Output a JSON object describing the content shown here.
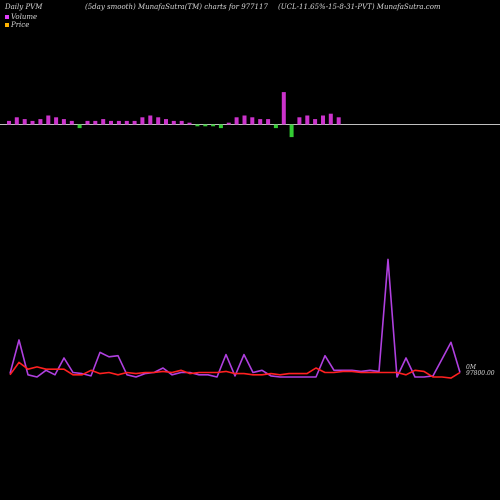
{
  "header": {
    "left": "Daily PVM",
    "mid": "(5day smooth) MunafaSutra(TM) charts for 977117",
    "right": "(UCL-11.65%-15-8-31-PVT) MunafaSutra.com"
  },
  "legend": [
    {
      "label": "Volume",
      "color": "#e040fb"
    },
    {
      "label": "Price",
      "color": "#ffb300"
    }
  ],
  "colors": {
    "volume": "#cc33cc",
    "price": "#ff2020",
    "down_bar": "#33cc33",
    "axis": "#ffffff"
  },
  "labels": {
    "volume_value": "0M",
    "price_value": "97800.00"
  },
  "chart_data": {
    "type": "bar",
    "series": [
      {
        "name": "Volume",
        "kind": "bar",
        "values": [
          1,
          2,
          1.5,
          1,
          1.5,
          2.5,
          2,
          1.5,
          1,
          1,
          1,
          1,
          1.5,
          1,
          1,
          1,
          1,
          2,
          2.5,
          2,
          1.5,
          1,
          1,
          0.5,
          0.5,
          0.5,
          0.5,
          1,
          0.5,
          2,
          2.5,
          2,
          1.5,
          1.5,
          1,
          9,
          3.5,
          2,
          2.5,
          1.5,
          2.5,
          3,
          2
        ]
      },
      {
        "name": "Volume line",
        "kind": "line",
        "values": [
          3,
          33,
          2,
          0,
          6,
          2,
          17,
          4,
          3,
          1,
          22,
          18,
          19,
          2,
          0,
          3,
          4,
          8,
          2,
          4,
          4,
          2,
          2,
          0,
          20,
          1,
          20,
          4,
          6,
          1,
          0,
          0,
          0,
          0,
          0,
          19,
          6,
          6,
          6,
          5,
          6,
          5,
          105,
          0,
          17,
          0,
          0,
          1,
          16,
          31,
          4
        ]
      },
      {
        "name": "Price line",
        "kind": "line",
        "values": [
          2,
          13,
          7,
          9,
          7,
          7,
          7,
          2,
          2,
          6,
          3,
          4,
          2,
          4,
          3,
          4,
          4,
          5,
          4,
          6,
          3,
          4,
          4,
          4,
          5,
          3,
          3,
          2,
          2,
          3,
          2,
          3,
          3,
          3,
          8,
          4,
          4,
          5,
          5,
          4,
          4,
          4,
          4,
          4,
          2,
          6,
          5,
          0,
          0,
          -1,
          4
        ]
      }
    ],
    "down_bars": [
      9,
      24,
      25,
      26,
      27,
      34,
      36
    ],
    "ylim": [
      0,
      110
    ]
  }
}
